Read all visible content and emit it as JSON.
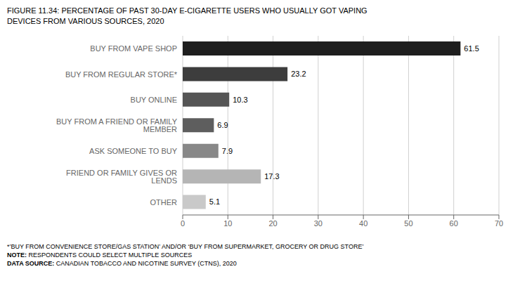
{
  "chart_data": {
    "type": "bar",
    "orientation": "horizontal",
    "title": "FIGURE 11.34: PERCENTAGE OF PAST 30-DAY E-CIGARETTE USERS WHO USUALLY GOT VAPING",
    "subtitle": "DEVICES FROM VARIOUS SOURCES, 2020",
    "categories": [
      "OTHER",
      "FRIEND OR FAMILY GIVES OR LENDS",
      "ASK SOMEONE TO BUY",
      "BUY FROM A FRIEND OR FAMILY MEMBER",
      "BUY ONLINE",
      "BUY FROM REGULAR STORE*",
      "BUY FROM VAPE SHOP"
    ],
    "values": [
      5.1,
      17.3,
      7.9,
      6.9,
      10.3,
      23.2,
      61.5
    ],
    "colors": [
      "#c9c9c9",
      "#b5b5b5",
      "#888888",
      "#5e5e5e",
      "#555555",
      "#3d3d3d",
      "#1e1e1e"
    ],
    "xlim": [
      0,
      70
    ],
    "xticks": [
      0,
      10,
      20,
      30,
      40,
      50,
      60,
      70
    ],
    "grid": true,
    "data_labels": true,
    "footnotes": [
      "*’BUY FROM CONVENIENCE STORE/GAS STATION’ AND/OR ‘BUY FROM SUPERMARKET, GROCERY OR DRUG STORE’",
      "NOTE: RESPONDENTS COULD SELECT MULTIPLE SOURCES",
      "DATA SOURCE: CANADIAN TOBACCO AND NICOTINE SURVEY (CTNS), 2020"
    ]
  }
}
